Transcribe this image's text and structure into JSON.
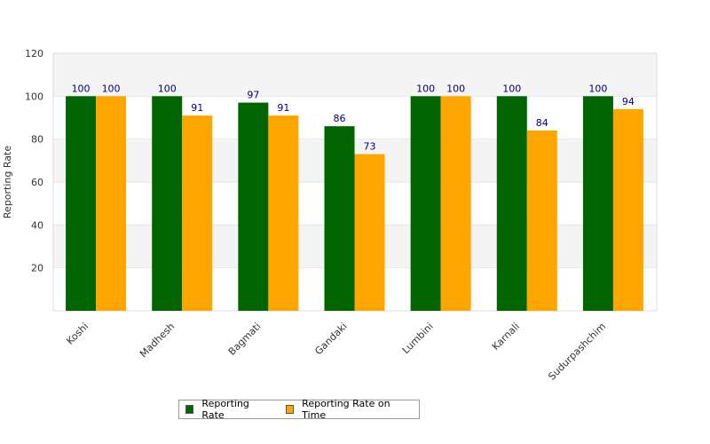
{
  "chart_data": {
    "type": "bar",
    "title": "",
    "xlabel": "",
    "ylabel": "Reporting Rate",
    "ylim": [
      0,
      120
    ],
    "yticks": [
      20,
      40,
      60,
      80,
      100,
      120
    ],
    "grid": true,
    "legend_position": "bottom",
    "categories": [
      "Koshi",
      "Madhesh",
      "Bagmati",
      "Gandaki",
      "Lumbini",
      "Karnali",
      "Sudurpashchim"
    ],
    "series": [
      {
        "name": "Reporting Rate",
        "color": "#006400",
        "values": [
          100,
          100,
          97,
          86,
          100,
          100,
          100
        ]
      },
      {
        "name": "Reporting Rate on Time",
        "color": "#FFA500",
        "values": [
          100,
          91,
          91,
          73,
          100,
          84,
          94
        ]
      }
    ]
  }
}
